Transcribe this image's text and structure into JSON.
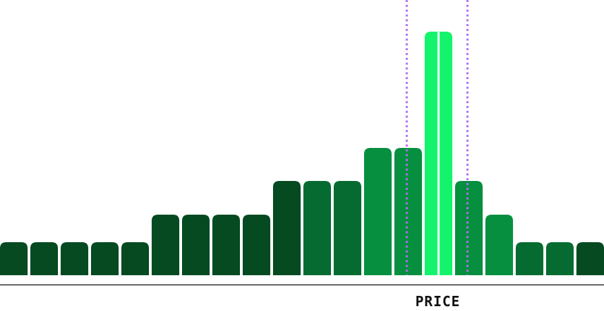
{
  "chart_data": {
    "type": "bar",
    "title": "",
    "xlabel": "PRICE",
    "ylabel": "",
    "ylim": [
      0,
      8
    ],
    "grid": false,
    "values": [
      1,
      1,
      1,
      1,
      1,
      2,
      2,
      2,
      2,
      3,
      3,
      3,
      4,
      4,
      8,
      3,
      2,
      1,
      1,
      1
    ],
    "bar_colors": [
      "#054a21",
      "#054a21",
      "#054a21",
      "#054a21",
      "#054a21",
      "#054a21",
      "#054a21",
      "#054a21",
      "#054a21",
      "#054a21",
      "#066b30",
      "#066b30",
      "#078f40",
      "#078f40",
      "#13f46c",
      "#078f40",
      "#078f40",
      "#066b30",
      "#066b30",
      "#054a21"
    ],
    "highlight_index": 14,
    "range_markers": {
      "from_index": 13,
      "to_index": 15,
      "color": "#b36cf5",
      "style": "dotted"
    },
    "axis_color": "#333333",
    "label_color": "#111111"
  }
}
